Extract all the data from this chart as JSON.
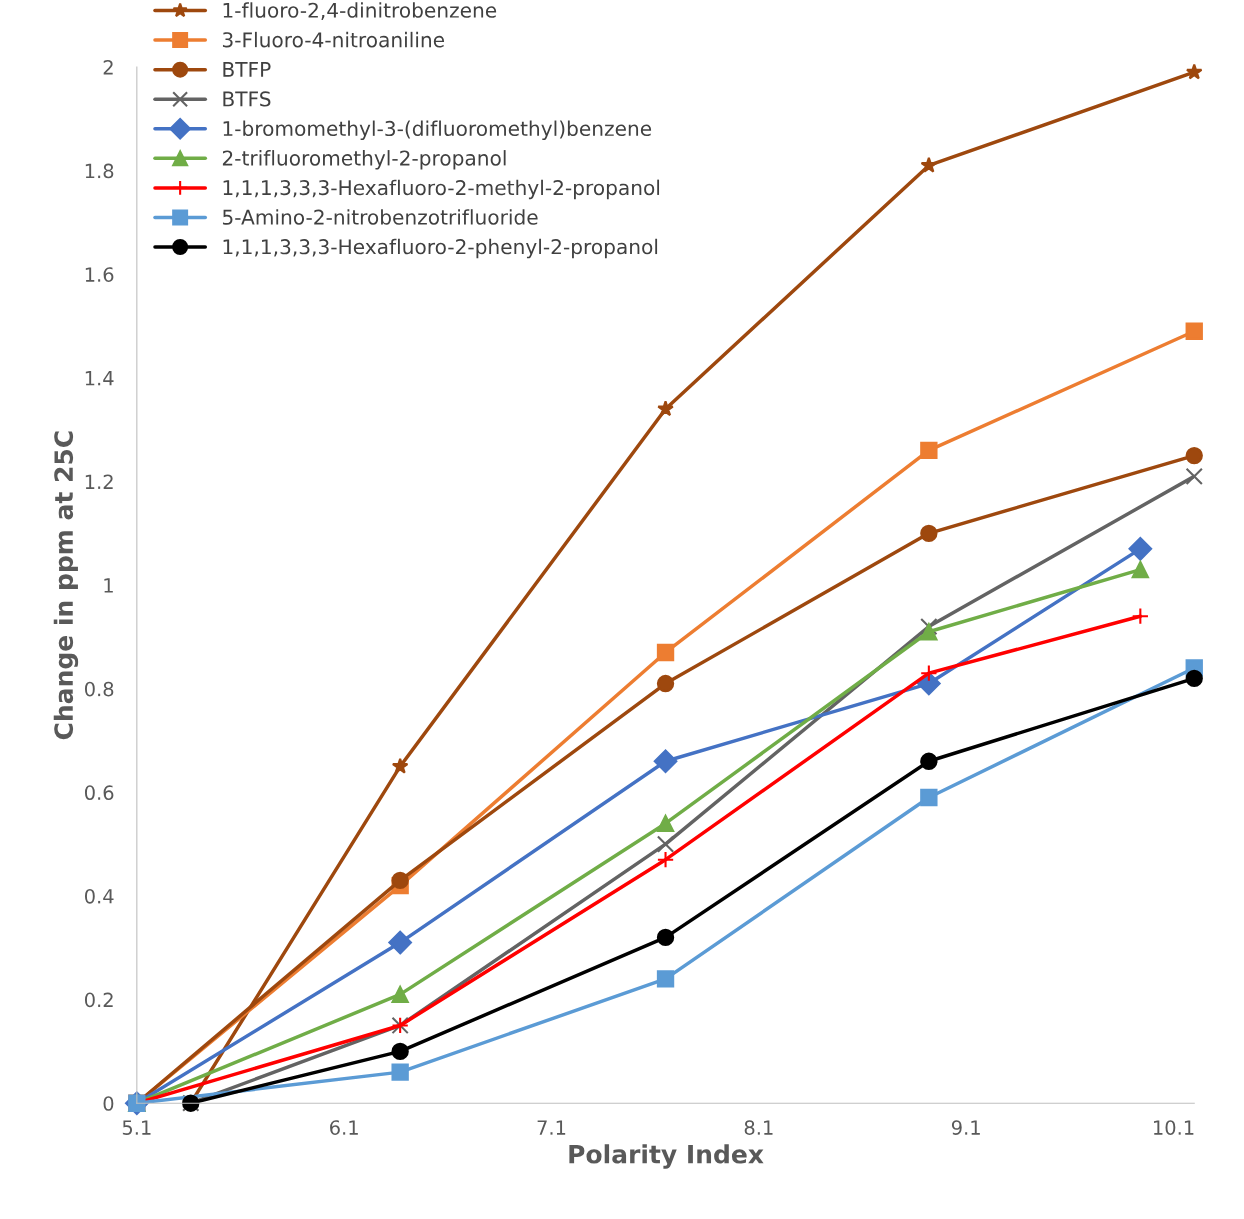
{
  "chart_data": {
    "type": "line",
    "xlabel": "Polarity Index",
    "ylabel": "Change in ppm at 25C",
    "xlim": [
      5.1,
      10.2
    ],
    "xticks": [
      5.1,
      6.1,
      7.1,
      8.1,
      9.1,
      10.1
    ],
    "ylim": [
      0,
      2
    ],
    "yticks": [
      0,
      0.2,
      0.4,
      0.6,
      0.8,
      1,
      1.2,
      1.4,
      1.6,
      1.8,
      2
    ],
    "grid": false,
    "legend": "top left",
    "line_style": "solid",
    "series": [
      {
        "name": "1-fluoro-2,4-dinitrobenzene",
        "color": "#9e480e",
        "marker": "star",
        "x": [
          5.36,
          6.37,
          7.65,
          8.92,
          10.2
        ],
        "values": [
          0,
          0.65,
          1.34,
          1.81,
          1.99
        ]
      },
      {
        "name": "3-Fluoro-4-nitroaniline",
        "color": "#ed7d31",
        "marker": "square",
        "x": [
          5.1,
          6.37,
          7.65,
          8.92,
          10.2
        ],
        "values": [
          0,
          0.42,
          0.87,
          1.26,
          1.49
        ]
      },
      {
        "name": "BTFP",
        "color": "#9e480e",
        "marker": "circle",
        "x": [
          5.1,
          6.37,
          7.65,
          8.92,
          10.2
        ],
        "values": [
          0,
          0.43,
          0.81,
          1.1,
          1.25
        ]
      },
      {
        "name": "BTFS",
        "color": "#636363",
        "marker": "cross",
        "x": [
          5.36,
          6.37,
          7.65,
          8.92,
          10.2
        ],
        "values": [
          0,
          0.15,
          0.5,
          0.92,
          1.21
        ]
      },
      {
        "name": "1-bromomethyl-3-(difluoromethyl)benzene",
        "color": "#4472c4",
        "marker": "diamond",
        "x": [
          5.1,
          6.37,
          7.65,
          8.92,
          9.94
        ],
        "values": [
          0,
          0.31,
          0.66,
          0.81,
          1.07
        ]
      },
      {
        "name": "2-trifluoromethyl-2-propanol",
        "color": "#70ad47",
        "marker": "triangle",
        "x": [
          5.1,
          6.37,
          7.65,
          8.92,
          9.94
        ],
        "values": [
          0,
          0.21,
          0.54,
          0.91,
          1.03
        ]
      },
      {
        "name": "1,1,1,3,3,3-Hexafluoro-2-methyl-2-propanol",
        "color": "#ff0000",
        "marker": "plus",
        "x": [
          5.1,
          6.37,
          7.65,
          8.92,
          9.94
        ],
        "values": [
          0,
          0.15,
          0.47,
          0.83,
          0.94
        ]
      },
      {
        "name": "5-Amino-2-nitrobenzotrifluoride",
        "color": "#5b9bd5",
        "marker": "square",
        "x": [
          5.1,
          6.37,
          7.65,
          8.92,
          10.2
        ],
        "values": [
          0,
          0.06,
          0.24,
          0.59,
          0.84
        ]
      },
      {
        "name": "1,1,1,3,3,3-Hexafluoro-2-phenyl-2-propanol",
        "color": "#000000",
        "marker": "circle",
        "x": [
          5.36,
          6.37,
          7.65,
          8.92,
          10.2
        ],
        "values": [
          0,
          0.1,
          0.32,
          0.66,
          0.82
        ]
      }
    ]
  }
}
